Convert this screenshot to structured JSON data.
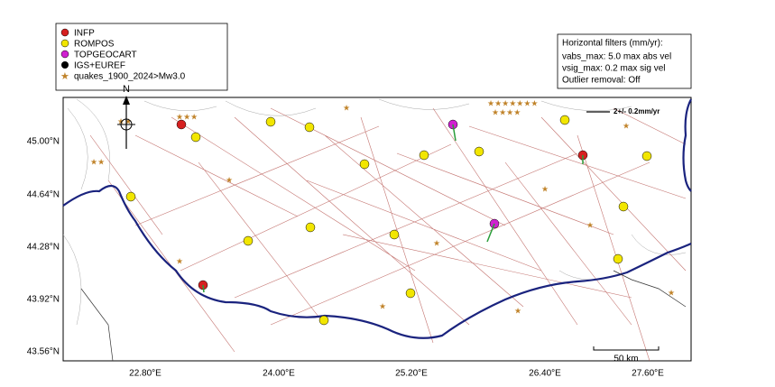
{
  "legend": {
    "items": [
      "INFP",
      "ROMPOS",
      "TOPGEOCART",
      "IGS+EUREF",
      "quakes_1900_2024>Mw3.0"
    ]
  },
  "filters": {
    "title": "Horizontal filters (mm/yr):",
    "lines": [
      "vabs_max: 5.0 max abs vel",
      "vsig_max: 0.2 max sig vel",
      "Outlier removal: Off"
    ]
  },
  "north": "N",
  "velocity_reference": "2+/- 0.2mm/yr",
  "scale_bar": "50 km",
  "axes": {
    "x_labels": [
      "22.80°E",
      "24.00°E",
      "25.20°E",
      "26.40°E",
      "27.60°E"
    ],
    "y_labels": [
      "45.00°N",
      "44.64°N",
      "44.28°N",
      "43.92°N",
      "43.56°N"
    ]
  }
}
